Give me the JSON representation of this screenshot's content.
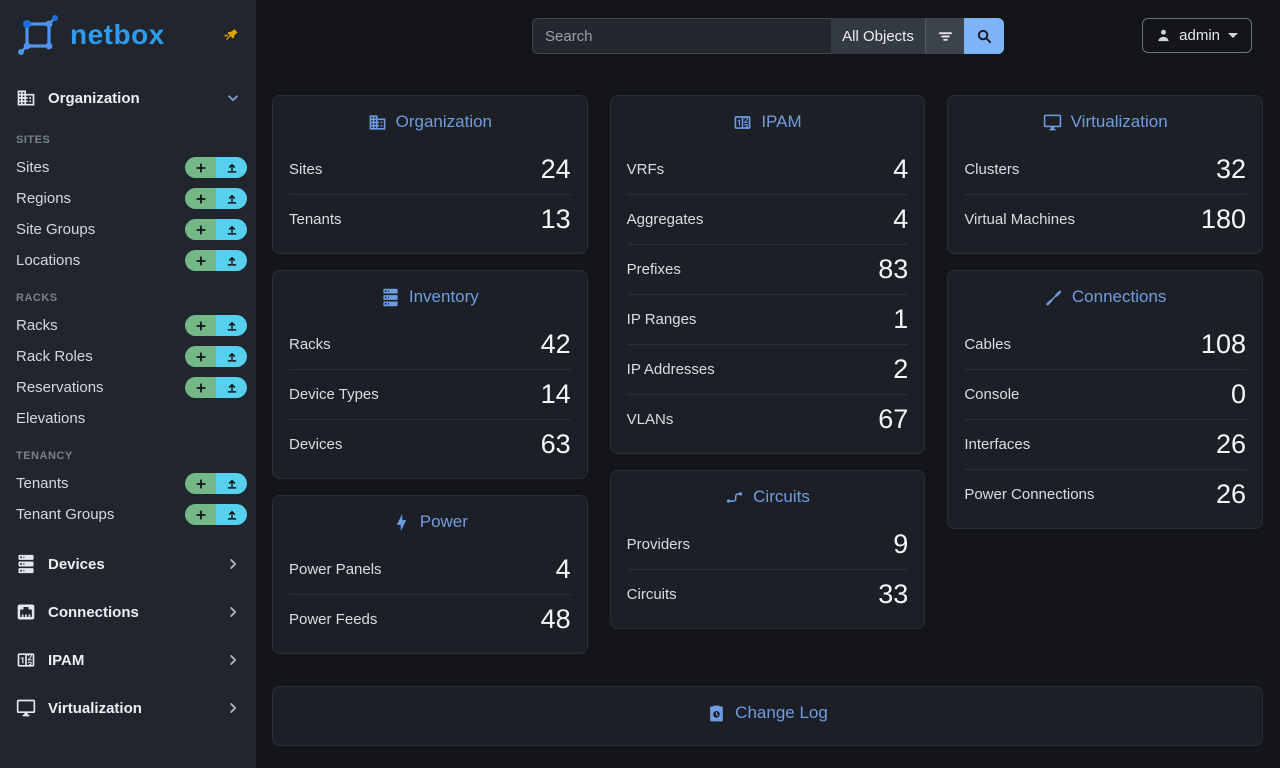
{
  "brand": {
    "name": "netbox"
  },
  "topbar": {
    "search_placeholder": "Search",
    "scope_label": "All Objects",
    "user_label": "admin"
  },
  "sidebar": {
    "top_group": {
      "label": "Organization",
      "icon": "building-icon",
      "expanded": true
    },
    "sections": [
      {
        "title": "Sites",
        "items": [
          {
            "label": "Sites",
            "actions": true
          },
          {
            "label": "Regions",
            "actions": true
          },
          {
            "label": "Site Groups",
            "actions": true
          },
          {
            "label": "Locations",
            "actions": true
          }
        ]
      },
      {
        "title": "Racks",
        "items": [
          {
            "label": "Racks",
            "actions": true
          },
          {
            "label": "Rack Roles",
            "actions": true
          },
          {
            "label": "Reservations",
            "actions": true
          },
          {
            "label": "Elevations",
            "actions": false
          }
        ]
      },
      {
        "title": "Tenancy",
        "items": [
          {
            "label": "Tenants",
            "actions": true
          },
          {
            "label": "Tenant Groups",
            "actions": true
          }
        ]
      }
    ],
    "bottom_groups": [
      {
        "label": "Devices",
        "icon": "server-icon"
      },
      {
        "label": "Connections",
        "icon": "ethernet-port-icon"
      },
      {
        "label": "IPAM",
        "icon": "counter-icon"
      },
      {
        "label": "Virtualization",
        "icon": "monitor-icon"
      }
    ]
  },
  "dashboard": {
    "columns": [
      [
        {
          "title": "Organization",
          "icon": "building-icon",
          "stats": [
            {
              "label": "Sites",
              "value": "24"
            },
            {
              "label": "Tenants",
              "value": "13"
            }
          ]
        },
        {
          "title": "Inventory",
          "icon": "server-icon",
          "stats": [
            {
              "label": "Racks",
              "value": "42"
            },
            {
              "label": "Device Types",
              "value": "14"
            },
            {
              "label": "Devices",
              "value": "63"
            }
          ]
        },
        {
          "title": "Power",
          "icon": "lightning-icon",
          "stats": [
            {
              "label": "Power Panels",
              "value": "4"
            },
            {
              "label": "Power Feeds",
              "value": "48"
            }
          ]
        }
      ],
      [
        {
          "title": "IPAM",
          "icon": "counter-icon",
          "stats": [
            {
              "label": "VRFs",
              "value": "4"
            },
            {
              "label": "Aggregates",
              "value": "4"
            },
            {
              "label": "Prefixes",
              "value": "83"
            },
            {
              "label": "IP Ranges",
              "value": "1"
            },
            {
              "label": "IP Addresses",
              "value": "2"
            },
            {
              "label": "VLANs",
              "value": "67"
            }
          ]
        },
        {
          "title": "Circuits",
          "icon": "transit-icon",
          "stats": [
            {
              "label": "Providers",
              "value": "9"
            },
            {
              "label": "Circuits",
              "value": "33"
            }
          ]
        }
      ],
      [
        {
          "title": "Virtualization",
          "icon": "monitor-icon",
          "stats": [
            {
              "label": "Clusters",
              "value": "32"
            },
            {
              "label": "Virtual Machines",
              "value": "180"
            }
          ]
        },
        {
          "title": "Connections",
          "icon": "cable-icon",
          "stats": [
            {
              "label": "Cables",
              "value": "108"
            },
            {
              "label": "Console",
              "value": "0"
            },
            {
              "label": "Interfaces",
              "value": "26"
            },
            {
              "label": "Power Connections",
              "value": "26"
            }
          ]
        }
      ]
    ],
    "footer_card": {
      "title": "Change Log",
      "icon": "changelog-icon"
    }
  },
  "colors": {
    "body_bg": "#131519",
    "sidebar_bg": "#21262e",
    "card_bg": "#1c2026",
    "accent_blue": "#6f9ce0",
    "brand_blue": "#2d9bf0",
    "add_button_green": "#74b887",
    "import_button_cyan": "#57d0ee",
    "search_button_blue": "#7fb3f7",
    "pin_amber": "#dfa408"
  }
}
